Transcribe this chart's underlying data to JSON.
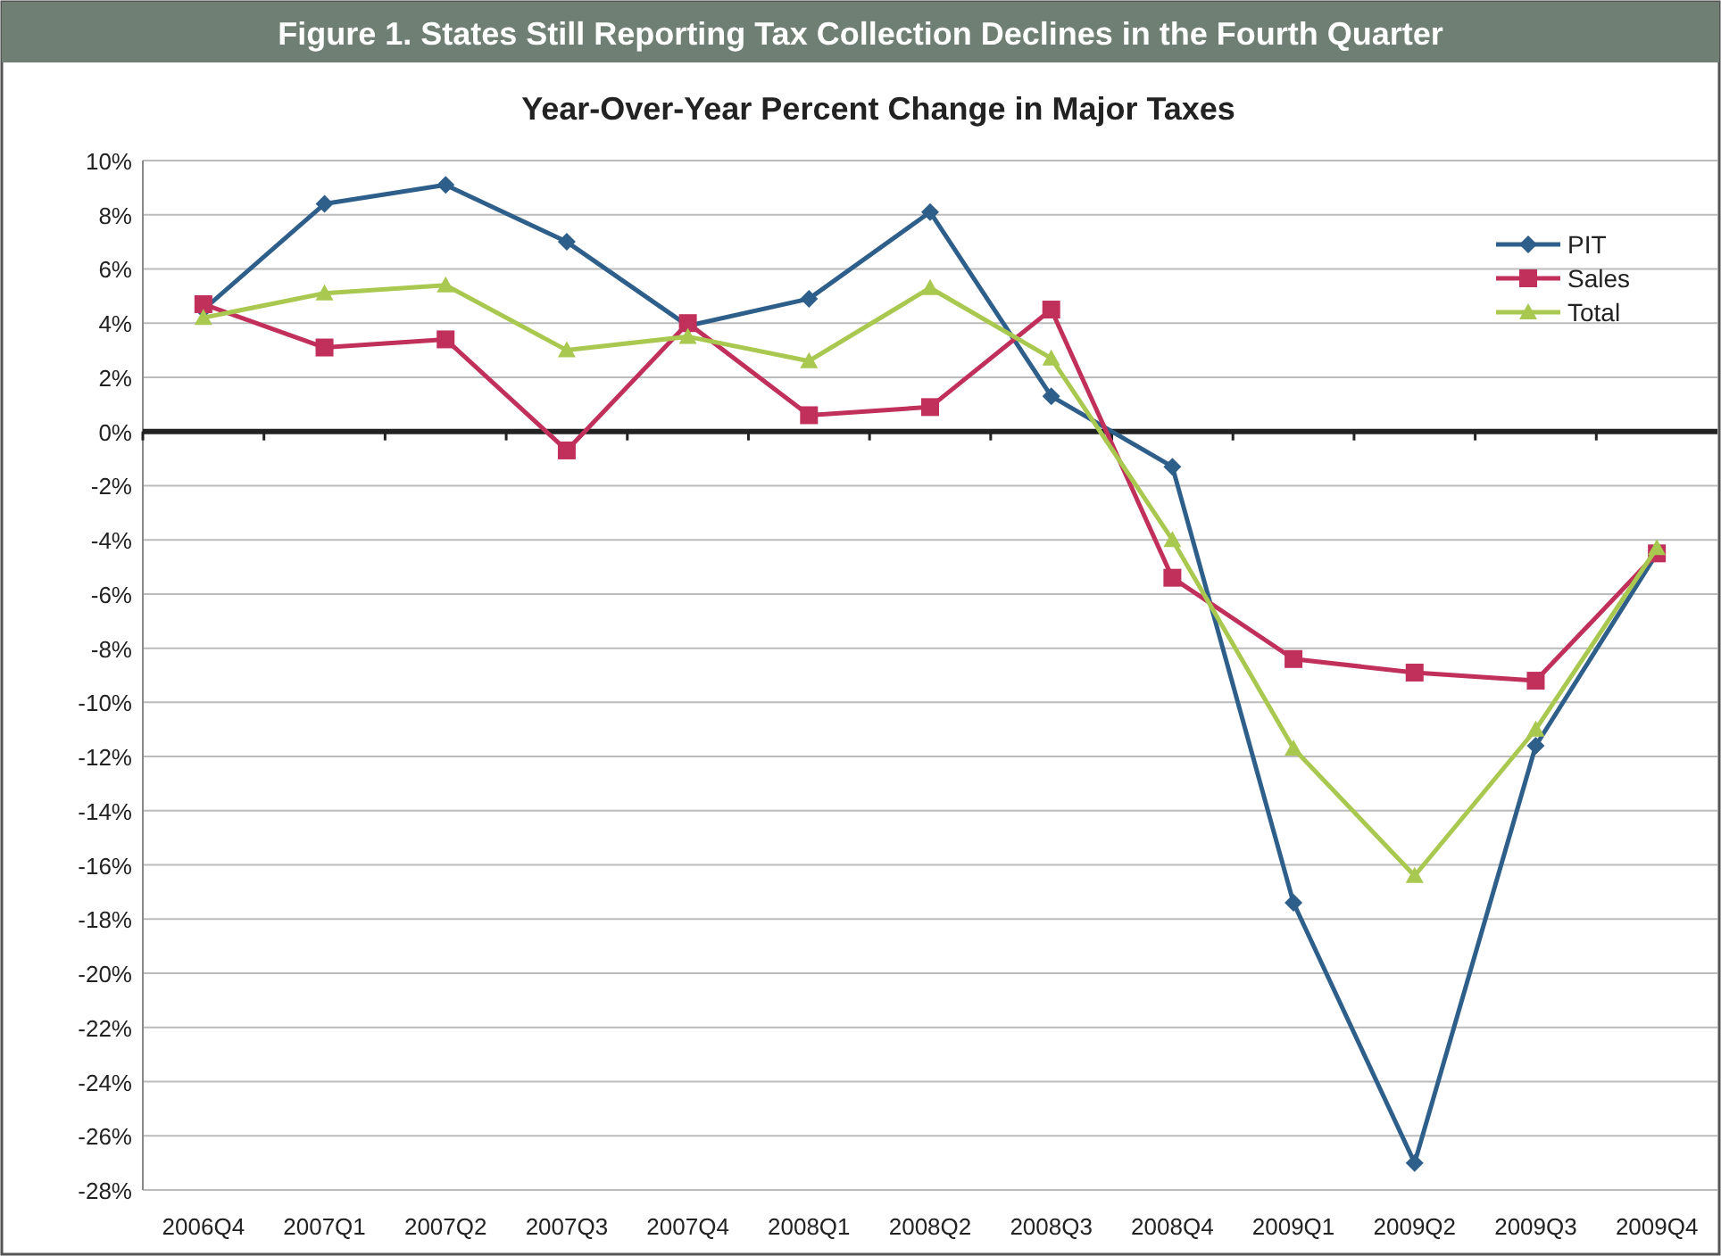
{
  "chart_data": {
    "type": "line",
    "title": "Figure 1. States Still Reporting Tax Collection Declines in the Fourth Quarter",
    "subtitle": "Year-Over-Year Percent Change in Major Taxes",
    "categories": [
      "2006Q4",
      "2007Q1",
      "2007Q2",
      "2007Q3",
      "2007Q4",
      "2008Q1",
      "2008Q2",
      "2008Q3",
      "2008Q4",
      "2009Q1",
      "2009Q2",
      "2009Q3",
      "2009Q4"
    ],
    "series": [
      {
        "name": "PIT",
        "color": "#2e5f8a",
        "marker": "diamond",
        "values": [
          4.5,
          8.4,
          9.1,
          7.0,
          3.9,
          4.9,
          8.1,
          1.3,
          -1.3,
          -17.4,
          -27.0,
          -11.6,
          -4.5
        ]
      },
      {
        "name": "Sales",
        "color": "#c0305a",
        "marker": "square",
        "values": [
          4.7,
          3.1,
          3.4,
          -0.7,
          4.0,
          0.6,
          0.9,
          4.5,
          -5.4,
          -8.4,
          -8.9,
          -9.2,
          -4.5
        ]
      },
      {
        "name": "Total",
        "color": "#a8c850",
        "marker": "triangle",
        "values": [
          4.2,
          5.1,
          5.4,
          3.0,
          3.5,
          2.6,
          5.3,
          2.7,
          -4.0,
          -11.7,
          -16.4,
          -11.0,
          -4.3
        ]
      }
    ],
    "ylim": [
      -28,
      10
    ],
    "yticks": [
      {
        "value": -28,
        "label": "-28%"
      },
      {
        "value": -26,
        "label": "-26%"
      },
      {
        "value": -24,
        "label": "-24%"
      },
      {
        "value": -22,
        "label": "-22%"
      },
      {
        "value": -20,
        "label": "-20%"
      },
      {
        "value": -18,
        "label": "-18%"
      },
      {
        "value": -16,
        "label": "-16%"
      },
      {
        "value": -14,
        "label": "-14%"
      },
      {
        "value": -12,
        "label": "-12%"
      },
      {
        "value": -10,
        "label": "-10%"
      },
      {
        "value": -8,
        "label": "-8%"
      },
      {
        "value": -6,
        "label": "-6%"
      },
      {
        "value": -4,
        "label": "-4%"
      },
      {
        "value": -2,
        "label": "-2%"
      },
      {
        "value": 0,
        "label": "0%"
      },
      {
        "value": 2,
        "label": "2%"
      },
      {
        "value": 4,
        "label": "4%"
      },
      {
        "value": 6,
        "label": "6%"
      },
      {
        "value": 8,
        "label": "8%"
      },
      {
        "value": 10,
        "label": "10%"
      }
    ],
    "grid": "y",
    "legend": "top right",
    "line_style": "solid"
  }
}
